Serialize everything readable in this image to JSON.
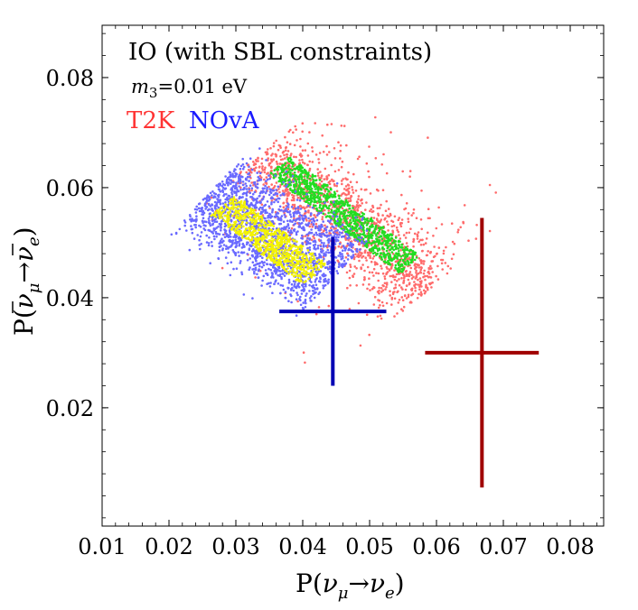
{
  "chart_data": {
    "type": "scatter",
    "title": "IO (with SBL constraints)",
    "subtitle": {
      "text": "=0.01 eV",
      "var": "m",
      "sub": "3"
    },
    "xlabel": {
      "prefix": "P(",
      "nu": "ν",
      "sub1": "μ",
      "arrow": "→",
      "sub2": "e",
      "suffix": ")"
    },
    "ylabel": {
      "prefix": "P(",
      "nu": "ν",
      "sub1": "μ",
      "arrow": "→",
      "sub2": "e",
      "suffix": ")",
      "overbar": true
    },
    "xlim": [
      0.01,
      0.085
    ],
    "ylim": [
      -0.0015,
      0.0895
    ],
    "xticks": [
      0.01,
      0.02,
      0.03,
      0.04,
      0.05,
      0.06,
      0.07,
      0.08
    ],
    "xtick_labels": [
      "0.01",
      "0.02",
      "0.03",
      "0.04",
      "0.05",
      "0.06",
      "0.07",
      "0.08"
    ],
    "yticks": [
      0.02,
      0.04,
      0.06,
      0.08
    ],
    "ytick_labels": [
      "0.02",
      "0.04",
      "0.06",
      "0.08"
    ],
    "legend": [
      {
        "label": "T2K",
        "color": "#ff3333"
      },
      {
        "label": "NOvA",
        "color": "#1a1aff"
      }
    ],
    "series": [
      {
        "name": "T2K region (scatter)",
        "kind": "band",
        "color": "#ff6b6b",
        "p1": [
          0.0345,
          0.0655
        ],
        "p2": [
          0.0585,
          0.0425
        ],
        "half_width": 0.0035,
        "spread": 0.0065,
        "count": 1500
      },
      {
        "name": "T2K core (green)",
        "kind": "band",
        "color": "#22dd22",
        "p1": [
          0.037,
          0.0635
        ],
        "p2": [
          0.0555,
          0.0465
        ],
        "half_width": 0.0022,
        "spread": 0.0002,
        "count": 1000
      },
      {
        "name": "NOvA region (scatter)",
        "kind": "band",
        "color": "#6a6aff",
        "p1": [
          0.0265,
          0.0585
        ],
        "p2": [
          0.0445,
          0.0445
        ],
        "half_width": 0.0065,
        "spread": 0.003,
        "count": 1800
      },
      {
        "name": "NOvA core (yellow)",
        "kind": "band",
        "color": "#f3f300",
        "p1": [
          0.0285,
          0.0565
        ],
        "p2": [
          0.0415,
          0.0445
        ],
        "half_width": 0.0025,
        "spread": 0.0003,
        "count": 800
      }
    ],
    "data_points": [
      {
        "name": "NOvA data",
        "color": "#0000b4",
        "x": 0.0445,
        "y": 0.0375,
        "xerr": [
          0.008,
          0.008
        ],
        "yerr": [
          0.0135,
          0.0135
        ]
      },
      {
        "name": "T2K data",
        "color": "#a00000",
        "x": 0.0668,
        "y": 0.03,
        "xerr": [
          0.0085,
          0.0085
        ],
        "yerr": [
          0.0245,
          0.0245
        ]
      }
    ]
  }
}
